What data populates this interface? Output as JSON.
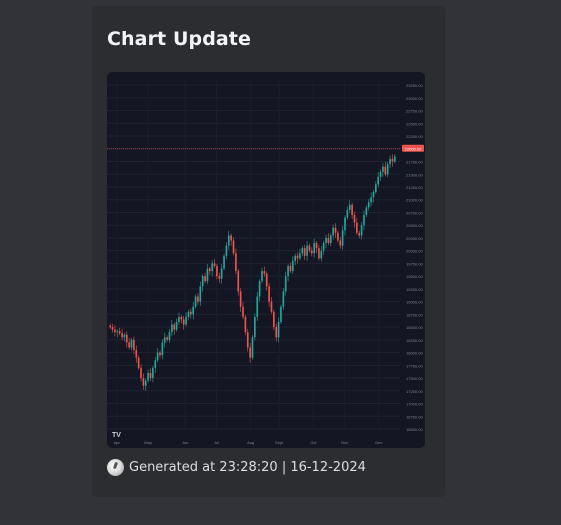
{
  "embed": {
    "title": "Chart Update",
    "footer_text": "Generated at 23:28:20 | 16-12-2024",
    "footer_icon": "clock-icon"
  },
  "colors": {
    "page_bg": "#313338",
    "embed_bg": "#2b2d31",
    "chart_bg": "#141723",
    "up": "#26a69a",
    "down": "#ef5350",
    "price_line": "#ef5350"
  },
  "chart_data": {
    "type": "candlestick",
    "title": "",
    "xlabel": "",
    "ylabel": "",
    "x_ticks": [
      "Apr",
      "May",
      "Jun",
      "Jul",
      "Aug",
      "Sept",
      "Oct",
      "Nov",
      "Dec"
    ],
    "y_ticks": [
      16500,
      16750,
      17000,
      17250,
      17500,
      17750,
      18000,
      18250,
      18500,
      18750,
      19000,
      19250,
      19500,
      19750,
      20000,
      20250,
      20500,
      20750,
      21000,
      21250,
      21500,
      21750,
      22000,
      22250,
      22500,
      22750,
      23000,
      23250
    ],
    "ylim": [
      16500,
      23350
    ],
    "current_price": 22000,
    "watermark": "TV",
    "closes": [
      18500,
      18450,
      18400,
      18420,
      18380,
      18300,
      18350,
      18200,
      18100,
      18250,
      18050,
      17900,
      17700,
      17500,
      17350,
      17450,
      17600,
      17500,
      17700,
      17850,
      18000,
      17950,
      18200,
      18300,
      18250,
      18400,
      18550,
      18450,
      18600,
      18700,
      18650,
      18550,
      18700,
      18800,
      18750,
      18900,
      19100,
      19000,
      19300,
      19500,
      19400,
      19650,
      19600,
      19750,
      19700,
      19500,
      19450,
      19650,
      19900,
      20100,
      20300,
      20200,
      19950,
      19600,
      19200,
      18900,
      18700,
      18400,
      18100,
      17900,
      18300,
      18700,
      19100,
      19400,
      19600,
      19550,
      19300,
      19000,
      18800,
      18500,
      18300,
      18600,
      18900,
      19200,
      19500,
      19700,
      19600,
      19800,
      19900,
      19850,
      19950,
      20050,
      19900,
      20100,
      20000,
      19950,
      20150,
      20050,
      19850,
      20000,
      20150,
      20250,
      20150,
      20300,
      20450,
      20350,
      20200,
      20100,
      20400,
      20650,
      20800,
      20900,
      20700,
      20550,
      20350,
      20300,
      20500,
      20700,
      20850,
      20950,
      21050,
      21150,
      21300,
      21450,
      21550,
      21650,
      21500,
      21700,
      21800,
      21750,
      21850
    ]
  }
}
